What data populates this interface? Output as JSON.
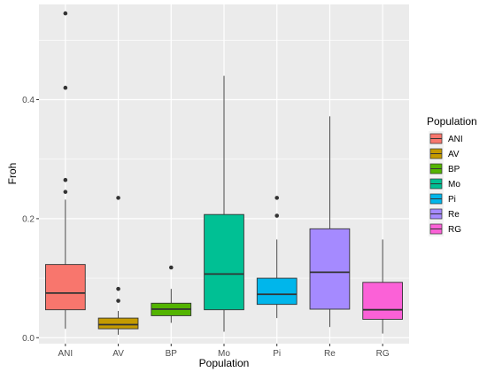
{
  "chart_data": {
    "type": "boxplot",
    "xlabel": "Population",
    "ylabel": "Froh",
    "ylim": [
      -0.01,
      0.56
    ],
    "yticks": [
      0.0,
      0.2,
      0.4
    ],
    "ytick_labels": [
      "0.0",
      "0.2",
      "0.4"
    ],
    "categories": [
      "ANI",
      "AV",
      "BP",
      "Mo",
      "Pi",
      "Re",
      "RG"
    ],
    "legend": {
      "title": "Population",
      "position": "right"
    },
    "grid": true,
    "background": "#ebebeb",
    "series": [
      {
        "name": "ANI",
        "color": "#f8766d",
        "whisker_low": 0.015,
        "q1": 0.047,
        "median": 0.075,
        "q3": 0.123,
        "whisker_high": 0.232,
        "outliers": [
          0.245,
          0.265,
          0.42,
          0.545
        ]
      },
      {
        "name": "AV",
        "color": "#c49a00",
        "whisker_low": 0.005,
        "q1": 0.015,
        "median": 0.022,
        "q3": 0.033,
        "whisker_high": 0.045,
        "outliers": [
          0.062,
          0.082,
          0.235
        ]
      },
      {
        "name": "BP",
        "color": "#53b400",
        "whisker_low": 0.025,
        "q1": 0.037,
        "median": 0.048,
        "q3": 0.058,
        "whisker_high": 0.082,
        "outliers": [
          0.118
        ]
      },
      {
        "name": "Mo",
        "color": "#00c094",
        "whisker_low": 0.01,
        "q1": 0.047,
        "median": 0.107,
        "q3": 0.207,
        "whisker_high": 0.44,
        "outliers": []
      },
      {
        "name": "Pi",
        "color": "#00b6eb",
        "whisker_low": 0.033,
        "q1": 0.056,
        "median": 0.073,
        "q3": 0.1,
        "whisker_high": 0.165,
        "outliers": [
          0.205,
          0.235
        ]
      },
      {
        "name": "Re",
        "color": "#a58aff",
        "whisker_low": 0.018,
        "q1": 0.048,
        "median": 0.11,
        "q3": 0.183,
        "whisker_high": 0.372,
        "outliers": []
      },
      {
        "name": "RG",
        "color": "#fb61d7",
        "whisker_low": 0.007,
        "q1": 0.031,
        "median": 0.047,
        "q3": 0.093,
        "whisker_high": 0.165,
        "outliers": []
      }
    ]
  }
}
